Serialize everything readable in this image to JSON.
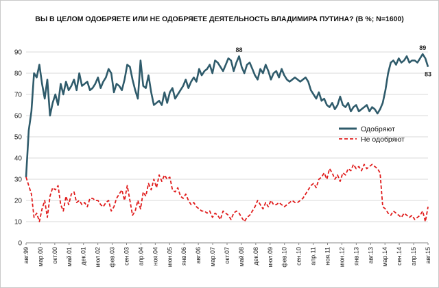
{
  "chart_data": {
    "type": "line",
    "title": "ВЫ В ЦЕЛОМ ОДОБРЯЕТЕ ИЛИ НЕ ОДОБРЯЕТЕ ДЕЯТЕЛЬНОСТЬ ВЛАДИМИРА ПУТИНА? (В %; N=1600)",
    "ylim": [
      0,
      100
    ],
    "yticks": [
      0,
      10,
      20,
      30,
      40,
      50,
      60,
      70,
      80,
      90
    ],
    "grid": "horizontal",
    "legend_position": "right",
    "x_tick_labels": [
      "авг.99",
      "мар.00",
      "окт.00",
      "май.01",
      "дек.01",
      "июл.02",
      "фев.03",
      "сен.03",
      "апр.04",
      "ноя.04",
      "июн.05",
      "янв.06",
      "авг.06",
      "мар.07",
      "окт.07",
      "май.08",
      "дек.08",
      "июл.09",
      "фев.10",
      "сен.10",
      "апр.11",
      "ноя.11",
      "июн.12",
      "янв.13",
      "авг.13",
      "мар.14",
      "сен.14",
      "апр.15",
      "авг.15"
    ],
    "series": [
      {
        "name": "Одобряют",
        "color": "#2f5b6b",
        "style": "solid",
        "values": [
          31,
          53,
          62,
          80,
          78,
          84,
          75,
          68,
          77,
          60,
          66,
          70,
          65,
          75,
          70,
          76,
          72,
          74,
          77,
          72,
          80,
          74,
          75,
          76,
          72,
          73,
          75,
          78,
          73,
          76,
          78,
          82,
          80,
          71,
          75,
          74,
          72,
          77,
          84,
          83,
          77,
          72,
          68,
          86,
          74,
          73,
          79,
          71,
          65,
          66,
          67,
          65,
          71,
          66,
          71,
          73,
          68,
          70,
          72,
          74,
          77,
          73,
          76,
          78,
          76,
          82,
          79,
          81,
          82,
          84,
          80,
          86,
          85,
          83,
          81,
          84,
          87,
          86,
          81,
          85,
          88,
          83,
          80,
          84,
          85,
          82,
          79,
          77,
          82,
          80,
          84,
          81,
          77,
          80,
          81,
          78,
          82,
          79,
          77,
          76,
          77,
          78,
          77,
          76,
          77,
          78,
          76,
          72,
          70,
          68,
          71,
          67,
          68,
          65,
          64,
          66,
          63,
          65,
          69,
          65,
          64,
          66,
          62,
          64,
          65,
          62,
          63,
          64,
          65,
          62,
          64,
          63,
          61,
          63,
          66,
          72,
          80,
          85,
          86,
          84,
          87,
          85,
          86,
          88,
          85,
          86,
          86,
          85,
          87,
          89,
          87,
          83
        ]
      },
      {
        "name": "Не одобряют",
        "color": "#e01b1b",
        "style": "dashed",
        "values": [
          31,
          27,
          23,
          12,
          14,
          10,
          16,
          20,
          12,
          22,
          26,
          25,
          27,
          18,
          15,
          22,
          18,
          23,
          24,
          19,
          20,
          18,
          19,
          17,
          21,
          21,
          20,
          20,
          18,
          17,
          19,
          20,
          15,
          17,
          21,
          23,
          25,
          20,
          27,
          20,
          13,
          15,
          20,
          16,
          24,
          22,
          28,
          25,
          30,
          26,
          32,
          29,
          32,
          30,
          31,
          25,
          24,
          26,
          22,
          21,
          23,
          20,
          18,
          19,
          17,
          16,
          15,
          15,
          14,
          15,
          12,
          14,
          13,
          11,
          15,
          14,
          13,
          11,
          14,
          15,
          14,
          12,
          10,
          12,
          13,
          15,
          17,
          20,
          18,
          16,
          19,
          17,
          20,
          18,
          18,
          19,
          18,
          17,
          18,
          19,
          20,
          19,
          19,
          20,
          21,
          23,
          25,
          27,
          28,
          26,
          30,
          31,
          33,
          30,
          35,
          33,
          30,
          32,
          29,
          33,
          32,
          35,
          34,
          37,
          35,
          36,
          34,
          37,
          35,
          36,
          37,
          36,
          35,
          33,
          17,
          16,
          14,
          13,
          15,
          14,
          13,
          12,
          14,
          13,
          12,
          13,
          11,
          12,
          13,
          15,
          10,
          17
        ]
      }
    ],
    "annotations": [
      {
        "text": "88",
        "x_index": 80,
        "value": 88
      },
      {
        "text": "89",
        "x_index": 149,
        "value": 89
      },
      {
        "text": "83",
        "x_index": 151,
        "value": 83
      }
    ]
  }
}
